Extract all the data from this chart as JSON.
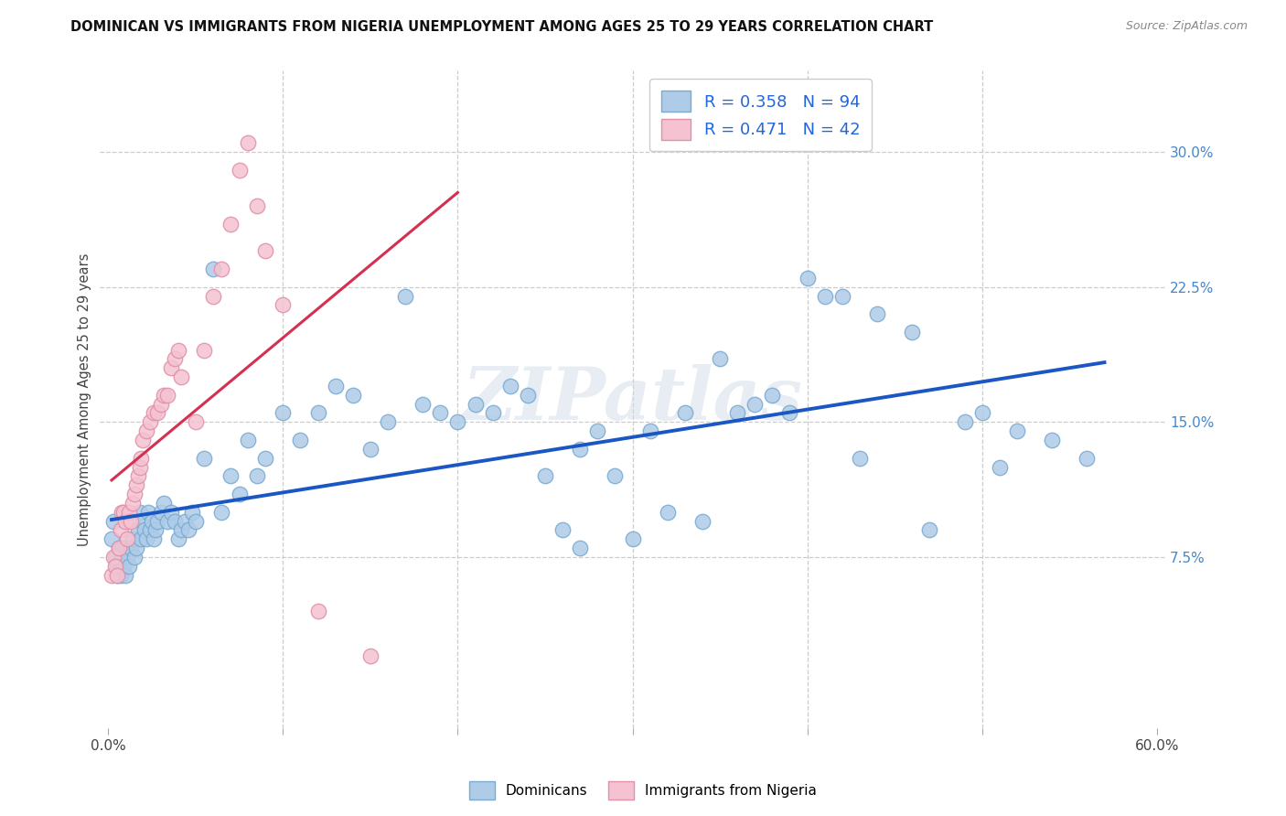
{
  "title": "DOMINICAN VS IMMIGRANTS FROM NIGERIA UNEMPLOYMENT AMONG AGES 25 TO 29 YEARS CORRELATION CHART",
  "source": "Source: ZipAtlas.com",
  "ylabel": "Unemployment Among Ages 25 to 29 years",
  "xlim": [
    0.0,
    0.6
  ],
  "ylim": [
    -0.01,
    0.345
  ],
  "xtick_labels": [
    "0.0%",
    "",
    "",
    "",
    "",
    "",
    "60.0%"
  ],
  "xtick_pos": [
    0.0,
    0.1,
    0.2,
    0.3,
    0.4,
    0.5,
    0.6
  ],
  "ytick_labels_right": [
    "7.5%",
    "15.0%",
    "22.5%",
    "30.0%"
  ],
  "ytick_positions_right": [
    0.075,
    0.15,
    0.225,
    0.3
  ],
  "blue_R": 0.358,
  "blue_N": 94,
  "pink_R": 0.471,
  "pink_N": 42,
  "blue_color": "#aecce8",
  "blue_edge_color": "#7aaad0",
  "pink_color": "#f4c2d0",
  "pink_edge_color": "#e090a8",
  "blue_line_color": "#1a56c4",
  "pink_line_color": "#d43050",
  "legend_blue_label": "Dominicans",
  "legend_pink_label": "Immigrants from Nigeria",
  "watermark": "ZIPatlas",
  "blue_x": [
    0.002,
    0.003,
    0.004,
    0.005,
    0.005,
    0.006,
    0.007,
    0.007,
    0.008,
    0.008,
    0.009,
    0.01,
    0.01,
    0.011,
    0.012,
    0.013,
    0.014,
    0.015,
    0.016,
    0.017,
    0.018,
    0.019,
    0.02,
    0.021,
    0.022,
    0.023,
    0.024,
    0.025,
    0.026,
    0.027,
    0.028,
    0.03,
    0.032,
    0.034,
    0.036,
    0.038,
    0.04,
    0.042,
    0.044,
    0.046,
    0.048,
    0.05,
    0.055,
    0.06,
    0.065,
    0.07,
    0.075,
    0.08,
    0.085,
    0.09,
    0.1,
    0.11,
    0.12,
    0.13,
    0.14,
    0.15,
    0.16,
    0.17,
    0.18,
    0.19,
    0.2,
    0.21,
    0.22,
    0.23,
    0.24,
    0.25,
    0.26,
    0.27,
    0.28,
    0.3,
    0.32,
    0.34,
    0.36,
    0.38,
    0.4,
    0.42,
    0.44,
    0.46,
    0.5,
    0.52,
    0.54,
    0.56,
    0.35,
    0.33,
    0.29,
    0.31,
    0.27,
    0.37,
    0.39,
    0.41,
    0.43,
    0.47,
    0.49,
    0.51
  ],
  "blue_y": [
    0.085,
    0.095,
    0.075,
    0.065,
    0.07,
    0.08,
    0.065,
    0.07,
    0.075,
    0.08,
    0.07,
    0.065,
    0.08,
    0.075,
    0.07,
    0.08,
    0.085,
    0.075,
    0.08,
    0.09,
    0.1,
    0.085,
    0.095,
    0.09,
    0.085,
    0.1,
    0.09,
    0.095,
    0.085,
    0.09,
    0.095,
    0.1,
    0.105,
    0.095,
    0.1,
    0.095,
    0.085,
    0.09,
    0.095,
    0.09,
    0.1,
    0.095,
    0.13,
    0.235,
    0.1,
    0.12,
    0.11,
    0.14,
    0.12,
    0.13,
    0.155,
    0.14,
    0.155,
    0.17,
    0.165,
    0.135,
    0.15,
    0.22,
    0.16,
    0.155,
    0.15,
    0.16,
    0.155,
    0.17,
    0.165,
    0.12,
    0.09,
    0.135,
    0.145,
    0.085,
    0.1,
    0.095,
    0.155,
    0.165,
    0.23,
    0.22,
    0.21,
    0.2,
    0.155,
    0.145,
    0.14,
    0.13,
    0.185,
    0.155,
    0.12,
    0.145,
    0.08,
    0.16,
    0.155,
    0.22,
    0.13,
    0.09,
    0.15,
    0.125
  ],
  "pink_x": [
    0.002,
    0.003,
    0.004,
    0.005,
    0.006,
    0.007,
    0.008,
    0.009,
    0.01,
    0.011,
    0.012,
    0.013,
    0.014,
    0.015,
    0.016,
    0.017,
    0.018,
    0.019,
    0.02,
    0.022,
    0.024,
    0.026,
    0.028,
    0.03,
    0.032,
    0.034,
    0.036,
    0.038,
    0.04,
    0.042,
    0.05,
    0.055,
    0.06,
    0.065,
    0.07,
    0.075,
    0.08,
    0.085,
    0.09,
    0.1,
    0.12,
    0.15
  ],
  "pink_y": [
    0.065,
    0.075,
    0.07,
    0.065,
    0.08,
    0.09,
    0.1,
    0.1,
    0.095,
    0.085,
    0.1,
    0.095,
    0.105,
    0.11,
    0.115,
    0.12,
    0.125,
    0.13,
    0.14,
    0.145,
    0.15,
    0.155,
    0.155,
    0.16,
    0.165,
    0.165,
    0.18,
    0.185,
    0.19,
    0.175,
    0.15,
    0.19,
    0.22,
    0.235,
    0.26,
    0.29,
    0.305,
    0.27,
    0.245,
    0.215,
    0.045,
    0.02
  ]
}
